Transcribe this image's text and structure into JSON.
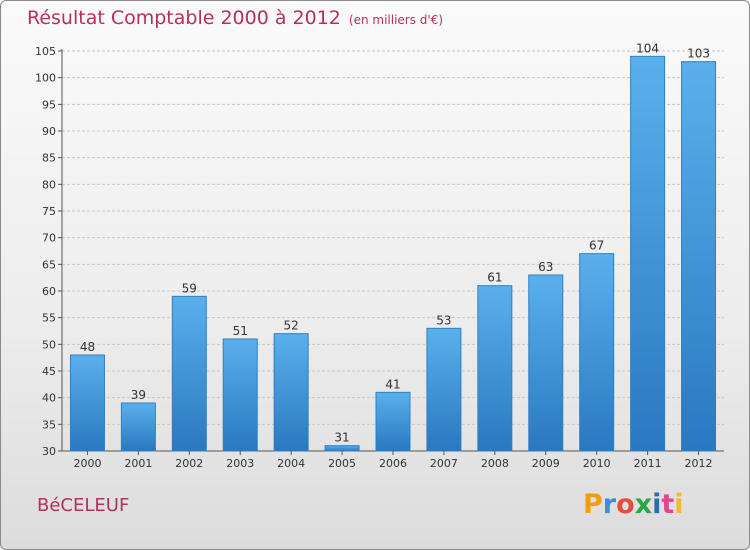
{
  "header": {
    "title": "Résultat Comptable 2000 à 2012",
    "unit": "(en milliers d'€)"
  },
  "footer": {
    "commune": "BéCELEUF",
    "logo_letters": [
      "P",
      "r",
      "o",
      "x",
      "i",
      "t",
      "i"
    ],
    "logo_colors": [
      "#f39c12",
      "#3a8fd8",
      "#e74c3c",
      "#27a844",
      "#2b6cb0",
      "#e84393",
      "#f5b82e"
    ]
  },
  "colors": {
    "bar_top": "#5ab0ec",
    "bar_bottom": "#2a78c0",
    "grid": "#c8c8c8",
    "title": "#b5305d"
  },
  "chart_data": {
    "type": "bar",
    "title": "Résultat Comptable 2000 à 2012",
    "xlabel": "",
    "ylabel": "",
    "categories": [
      "2000",
      "2001",
      "2002",
      "2003",
      "2004",
      "2005",
      "2006",
      "2007",
      "2008",
      "2009",
      "2010",
      "2011",
      "2012"
    ],
    "values": [
      48,
      39,
      59,
      51,
      52,
      31,
      41,
      53,
      61,
      63,
      67,
      104,
      103
    ],
    "ylim": [
      30,
      105
    ],
    "yticks": [
      30,
      35,
      40,
      45,
      50,
      55,
      60,
      65,
      70,
      75,
      80,
      85,
      90,
      95,
      100,
      105
    ],
    "grid": true
  }
}
